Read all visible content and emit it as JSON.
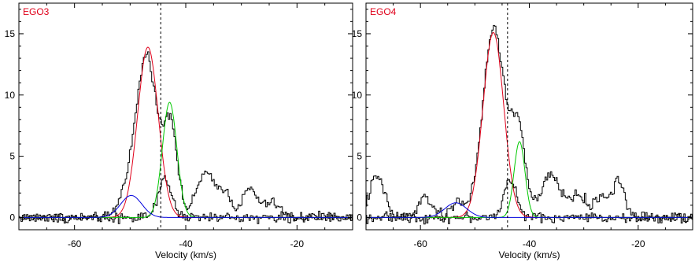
{
  "chart_data": [
    {
      "type": "line",
      "title": "",
      "panel_label": "EGO3",
      "panel_label_color": "#e0001a",
      "xlabel": "Velocity (km/s)",
      "ylabel": "",
      "xlim": [
        -70,
        -10
      ],
      "ylim": [
        -1,
        17.5
      ],
      "x_ticks": [
        -60,
        -40,
        -20
      ],
      "y_ticks": [
        0,
        5,
        10,
        15
      ],
      "vline_x": -44.5,
      "observed_spectra": [
        {
          "color": "#000000",
          "baseline": 0.0,
          "noise": 0.3,
          "components": [
            {
              "amp": 13.2,
              "center": -47.0,
              "sigma": 1.85
            },
            {
              "amp": 7.5,
              "center": -42.7,
              "sigma": 1.2
            },
            {
              "amp": 1.8,
              "center": -50.5,
              "sigma": 1.5
            },
            {
              "amp": 3.6,
              "center": -36.5,
              "sigma": 1.6
            },
            {
              "amp": 2.0,
              "center": -33.0,
              "sigma": 1.2
            },
            {
              "amp": 2.3,
              "center": -28.5,
              "sigma": 1.3
            },
            {
              "amp": 1.2,
              "center": -24.5,
              "sigma": 1.5
            }
          ]
        },
        {
          "color": "#000000",
          "baseline": 0.0,
          "noise": 0.3,
          "components": [
            {
              "amp": 3.0,
              "center": -43.7,
              "sigma": 1.2
            }
          ]
        }
      ],
      "fits": [
        {
          "color": "#e0001a",
          "amp": 13.9,
          "center": -46.8,
          "sigma": 1.85
        },
        {
          "color": "#00c800",
          "amp": 9.4,
          "center": -42.9,
          "sigma": 1.3
        },
        {
          "color": "#0000dd",
          "amp": 1.8,
          "center": -49.8,
          "sigma": 1.9
        }
      ]
    },
    {
      "type": "line",
      "title": "",
      "panel_label": "EGO4",
      "panel_label_color": "#e0001a",
      "xlabel": "Velocity (km/s)",
      "ylabel": "",
      "xlim": [
        -70,
        -10
      ],
      "ylim": [
        -1,
        17.5
      ],
      "x_ticks": [
        -60,
        -40,
        -20
      ],
      "y_ticks": [
        0,
        5,
        10,
        15
      ],
      "vline_x": -44.0,
      "observed_spectra": [
        {
          "color": "#000000",
          "baseline": 0.0,
          "noise": 0.35,
          "components": [
            {
              "amp": 15.5,
              "center": -46.5,
              "sigma": 2.0
            },
            {
              "amp": 7.0,
              "center": -42.0,
              "sigma": 1.3
            },
            {
              "amp": 3.3,
              "center": -68.0,
              "sigma": 1.4
            },
            {
              "amp": 1.6,
              "center": -59.0,
              "sigma": 1.3
            },
            {
              "amp": 1.3,
              "center": -53.0,
              "sigma": 1.2
            },
            {
              "amp": 3.4,
              "center": -36.0,
              "sigma": 1.8
            },
            {
              "amp": 1.8,
              "center": -31.0,
              "sigma": 1.5
            },
            {
              "amp": 1.8,
              "center": -26.5,
              "sigma": 1.3
            },
            {
              "amp": 3.0,
              "center": -23.5,
              "sigma": 1.0
            }
          ]
        },
        {
          "color": "#000000",
          "baseline": 0.0,
          "noise": 0.3,
          "components": [
            {
              "amp": 3.2,
              "center": -43.5,
              "sigma": 1.1
            }
          ]
        }
      ],
      "fits": [
        {
          "color": "#e0001a",
          "amp": 15.1,
          "center": -46.6,
          "sigma": 1.9
        },
        {
          "color": "#00c800",
          "amp": 6.2,
          "center": -41.8,
          "sigma": 1.0
        },
        {
          "color": "#0000dd",
          "amp": 1.2,
          "center": -53.5,
          "sigma": 2.0
        }
      ]
    }
  ]
}
